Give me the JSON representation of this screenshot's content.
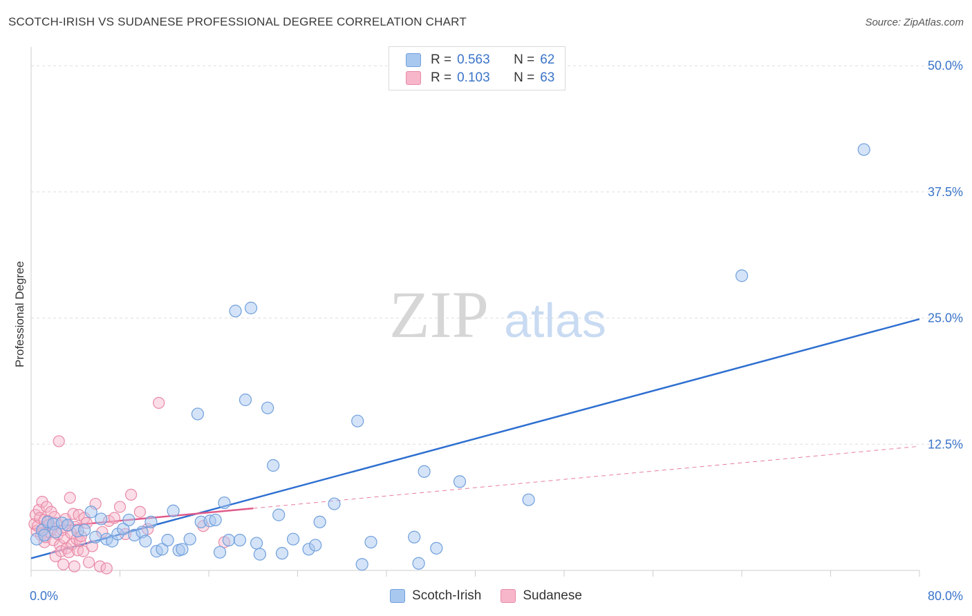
{
  "title": "SCOTCH-IRISH VS SUDANESE PROFESSIONAL DEGREE CORRELATION CHART",
  "source": "Source: ZipAtlas.com",
  "watermark": {
    "zip": "ZIP",
    "atlas": "atlas"
  },
  "legend_top": [
    {
      "r_label": "R =",
      "r_value": "0.563",
      "n_label": "N =",
      "n_value": "62"
    },
    {
      "r_label": "R =",
      "r_value": "0.103",
      "n_label": "N =",
      "n_value": "63"
    }
  ],
  "colors": {
    "scotch_fill": "#a9c8ef",
    "scotch_stroke": "#6f9fdc",
    "scotch_line": "#2e6fd0",
    "sudan_fill": "#f7b6c9",
    "sudan_stroke": "#e889a6",
    "sudan_line": "#e05a8a",
    "tick_text": "#3a74c9",
    "grid": "#dddddd"
  },
  "chart_data": {
    "type": "scatter",
    "title": "SCOTCH-IRISH VS SUDANESE PROFESSIONAL DEGREE CORRELATION CHART",
    "xlabel": "",
    "ylabel": "Professional Degree",
    "xlim": [
      0,
      80
    ],
    "ylim": [
      0,
      52
    ],
    "x_tick_labels": [
      {
        "value": 0,
        "label": "0.0%"
      },
      {
        "value": 80,
        "label": "80.0%"
      }
    ],
    "y_tick_labels": [
      {
        "value": 12.5,
        "label": "12.5%"
      },
      {
        "value": 25,
        "label": "25.0%"
      },
      {
        "value": 37.5,
        "label": "37.5%"
      },
      {
        "value": 50,
        "label": "50.0%"
      }
    ],
    "x_minor_ticks": [
      0,
      8,
      16,
      24,
      32,
      40,
      48,
      56,
      64,
      72,
      80
    ],
    "legend_position": "bottom-center",
    "series": [
      {
        "name": "Scotch-Irish",
        "r": 0.563,
        "n": 62,
        "trend": {
          "x": [
            0,
            80
          ],
          "y": [
            1.2,
            24.9
          ],
          "style": "solid"
        },
        "points": [
          [
            0.5,
            3.1
          ],
          [
            1.0,
            4.0
          ],
          [
            1.2,
            3.5
          ],
          [
            1.5,
            4.8
          ],
          [
            2.0,
            4.6
          ],
          [
            2.2,
            3.8
          ],
          [
            2.8,
            4.7
          ],
          [
            3.3,
            4.5
          ],
          [
            4.2,
            3.9
          ],
          [
            4.8,
            4.0
          ],
          [
            5.4,
            5.8
          ],
          [
            5.8,
            3.3
          ],
          [
            6.3,
            5.1
          ],
          [
            6.8,
            3.1
          ],
          [
            7.3,
            2.9
          ],
          [
            7.8,
            3.6
          ],
          [
            8.3,
            4.1
          ],
          [
            8.8,
            5.0
          ],
          [
            9.3,
            3.5
          ],
          [
            10.0,
            3.8
          ],
          [
            10.3,
            2.9
          ],
          [
            10.8,
            4.8
          ],
          [
            11.3,
            1.9
          ],
          [
            11.8,
            2.1
          ],
          [
            12.3,
            3.0
          ],
          [
            12.8,
            5.9
          ],
          [
            13.3,
            2.0
          ],
          [
            13.6,
            2.1
          ],
          [
            14.3,
            3.1
          ],
          [
            15.0,
            15.5
          ],
          [
            15.3,
            4.8
          ],
          [
            16.1,
            4.9
          ],
          [
            16.6,
            5.0
          ],
          [
            17.0,
            1.8
          ],
          [
            17.4,
            6.7
          ],
          [
            17.8,
            3.0
          ],
          [
            18.4,
            25.7
          ],
          [
            18.8,
            3.0
          ],
          [
            19.3,
            16.9
          ],
          [
            19.8,
            26.0
          ],
          [
            20.3,
            2.7
          ],
          [
            20.6,
            1.6
          ],
          [
            21.3,
            16.1
          ],
          [
            21.8,
            10.4
          ],
          [
            22.3,
            5.5
          ],
          [
            22.6,
            1.7
          ],
          [
            23.6,
            3.1
          ],
          [
            25.0,
            2.1
          ],
          [
            25.6,
            2.5
          ],
          [
            26.0,
            4.8
          ],
          [
            27.3,
            6.6
          ],
          [
            29.4,
            14.8
          ],
          [
            29.8,
            0.6
          ],
          [
            30.6,
            2.8
          ],
          [
            34.5,
            3.3
          ],
          [
            34.9,
            0.7
          ],
          [
            35.4,
            9.8
          ],
          [
            36.5,
            2.2
          ],
          [
            38.6,
            8.8
          ],
          [
            44.8,
            7.0
          ],
          [
            64.0,
            29.2
          ],
          [
            75.0,
            41.7
          ]
        ]
      },
      {
        "name": "Sudanese",
        "r": 0.103,
        "n": 63,
        "trend": {
          "x": [
            0,
            80
          ],
          "y": [
            4.1,
            12.3
          ],
          "solid_until": 20,
          "style": "solid-then-dashed"
        },
        "points": [
          [
            0.3,
            4.6
          ],
          [
            0.4,
            5.5
          ],
          [
            0.5,
            3.9
          ],
          [
            0.6,
            4.4
          ],
          [
            0.7,
            6.0
          ],
          [
            0.8,
            5.2
          ],
          [
            0.9,
            3.5
          ],
          [
            1.0,
            6.8
          ],
          [
            1.1,
            4.1
          ],
          [
            1.2,
            5.0
          ],
          [
            1.2,
            2.8
          ],
          [
            1.3,
            3.3
          ],
          [
            1.4,
            6.3
          ],
          [
            1.5,
            4.9
          ],
          [
            1.6,
            4.5
          ],
          [
            1.7,
            3.8
          ],
          [
            1.8,
            5.8
          ],
          [
            1.9,
            4.2
          ],
          [
            2.0,
            3.0
          ],
          [
            2.1,
            5.3
          ],
          [
            2.2,
            1.4
          ],
          [
            2.3,
            4.7
          ],
          [
            2.4,
            3.6
          ],
          [
            2.5,
            12.8
          ],
          [
            2.6,
            2.5
          ],
          [
            2.7,
            1.9
          ],
          [
            2.8,
            4.0
          ],
          [
            2.9,
            0.6
          ],
          [
            3.0,
            3.2
          ],
          [
            3.1,
            5.1
          ],
          [
            3.2,
            2.2
          ],
          [
            3.3,
            4.4
          ],
          [
            3.4,
            1.8
          ],
          [
            3.5,
            7.2
          ],
          [
            3.6,
            3.7
          ],
          [
            3.7,
            2.6
          ],
          [
            3.8,
            5.6
          ],
          [
            3.9,
            0.4
          ],
          [
            4.0,
            4.3
          ],
          [
            4.1,
            3.1
          ],
          [
            4.2,
            2.0
          ],
          [
            4.3,
            5.5
          ],
          [
            4.4,
            2.9
          ],
          [
            4.5,
            3.4
          ],
          [
            4.7,
            1.9
          ],
          [
            4.8,
            5.2
          ],
          [
            5.0,
            4.7
          ],
          [
            5.2,
            0.8
          ],
          [
            5.5,
            2.4
          ],
          [
            5.8,
            6.6
          ],
          [
            6.2,
            0.4
          ],
          [
            6.4,
            3.8
          ],
          [
            6.8,
            0.2
          ],
          [
            7.0,
            4.9
          ],
          [
            7.5,
            5.2
          ],
          [
            8.0,
            6.3
          ],
          [
            8.5,
            3.6
          ],
          [
            9.0,
            7.5
          ],
          [
            9.8,
            5.8
          ],
          [
            10.5,
            4.1
          ],
          [
            11.5,
            16.6
          ],
          [
            15.5,
            4.4
          ],
          [
            17.4,
            2.8
          ]
        ]
      }
    ]
  }
}
